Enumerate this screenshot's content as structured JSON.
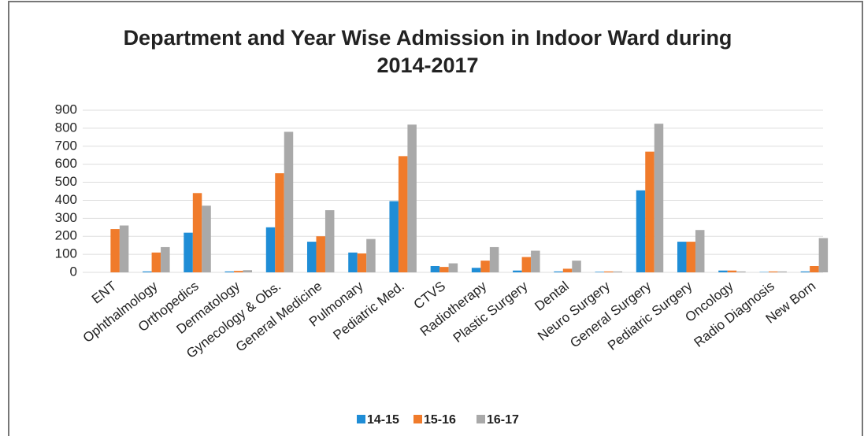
{
  "chart_data": {
    "type": "bar",
    "title": "Department and Year Wise Admission in Indoor Ward during 2014-2017",
    "categories": [
      "ENT",
      "Ophthalmology",
      "Orthopedics",
      "Dermatology",
      "Gynecology & Obs.",
      "General Medicine",
      "Pulmonary",
      "Pediatric Med.",
      "CTVS",
      "Radiotherapy",
      "Plastic Surgery",
      "Dental",
      "Neuro Surgery",
      "General Surgery",
      "Pediatric Surgery",
      "Oncology",
      "Radio Diagnosis",
      "New Born"
    ],
    "series": [
      {
        "name": "14-15",
        "color": "#1f8dd6",
        "values": [
          0,
          5,
          220,
          5,
          250,
          170,
          110,
          395,
          35,
          25,
          10,
          5,
          3,
          455,
          170,
          10,
          2,
          5
        ]
      },
      {
        "name": "15-16",
        "color": "#f07b2b",
        "values": [
          240,
          110,
          440,
          8,
          550,
          200,
          105,
          645,
          30,
          65,
          85,
          20,
          5,
          670,
          170,
          10,
          5,
          35
        ]
      },
      {
        "name": "16-17",
        "color": "#a9a9a9",
        "values": [
          260,
          140,
          370,
          12,
          780,
          345,
          185,
          820,
          50,
          140,
          120,
          65,
          5,
          825,
          235,
          5,
          5,
          190
        ]
      }
    ],
    "ylim": [
      0,
      900
    ],
    "yticks": [
      0,
      100,
      200,
      300,
      400,
      500,
      600,
      700,
      800,
      900
    ],
    "grid": true,
    "legend": "bottom"
  }
}
